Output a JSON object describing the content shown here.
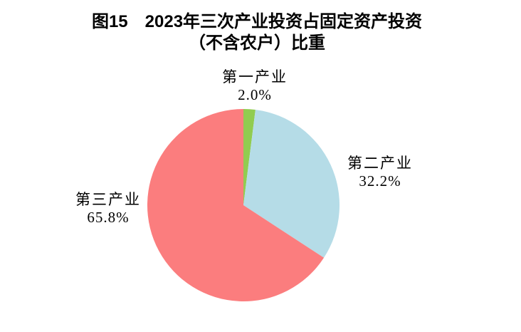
{
  "figure": {
    "title_line1": "图15　2023年三次产业投资占固定资产投资",
    "title_line2": "（不含农户）比重"
  },
  "chart_data": {
    "type": "pie",
    "title": "图15 2023年三次产业投资占固定资产投资（不含农户）比重",
    "unit": "%",
    "direction": "clockwise",
    "start_angle_deg": 0,
    "legend": "none",
    "labels_position": "outside",
    "slices": [
      {
        "key": "primary-industry",
        "label": "第一产业",
        "value": 2.0,
        "value_label": "2.0%",
        "color": "#91CC50"
      },
      {
        "key": "secondary-industry",
        "label": "第二产业",
        "value": 32.2,
        "value_label": "32.2%",
        "color": "#B5DCE7"
      },
      {
        "key": "tertiary-industry",
        "label": "第三产业",
        "value": 65.8,
        "value_label": "65.8%",
        "color": "#FB7D7E"
      }
    ]
  }
}
